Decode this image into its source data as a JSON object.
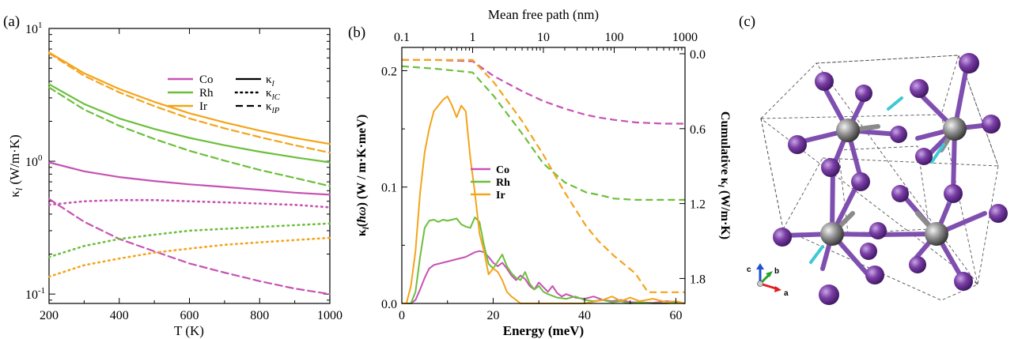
{
  "colors": {
    "Co": "#c652b4",
    "Rh": "#6cbf3b",
    "Ir": "#f4a41b",
    "axis": "#000000",
    "atom_purple": "#7b3fa6",
    "atom_grey": "#808080",
    "bond_purple": "#7f4fb0",
    "arrow_cyan": "#3ec9d4",
    "cell_line": "#555555",
    "axis_a": "#e02020",
    "axis_b": "#2aa02a",
    "axis_c": "#2050d0"
  },
  "panel_labels": {
    "a": "(a)",
    "b": "(b)",
    "c": "(c)"
  },
  "chart_data": [
    {
      "id": "a",
      "type": "line",
      "xlabel": "T (K)",
      "ylabel": "κ",
      "ylabel_sub": "l",
      "ylabel_unit": " (W/m·K)",
      "xlim": [
        200,
        1000
      ],
      "ylim": [
        0.085,
        10
      ],
      "yscale": "log",
      "xticks": [
        200,
        400,
        600,
        800,
        1000
      ],
      "yticks": [
        {
          "value": 0.1,
          "base": "10",
          "exp": "-1"
        },
        {
          "value": 1,
          "base": "10",
          "exp": "0"
        },
        {
          "value": 10,
          "base": "10",
          "exp": "1"
        }
      ],
      "legend_materials": [
        "Co",
        "Rh",
        "Ir"
      ],
      "legend_styles": [
        {
          "style": "solid",
          "label": "κ",
          "sub": "l"
        },
        {
          "style": "dotted",
          "label": "κ",
          "sub": "lC"
        },
        {
          "style": "dashed",
          "label": "κ",
          "sub": "lP"
        }
      ],
      "x": [
        200,
        300,
        400,
        500,
        600,
        700,
        800,
        900,
        1000
      ],
      "series": [
        {
          "name": "Co",
          "style": "solid",
          "values": [
            0.98,
            0.84,
            0.76,
            0.71,
            0.67,
            0.64,
            0.61,
            0.58,
            0.56
          ]
        },
        {
          "name": "Co",
          "style": "dotted",
          "values": [
            0.47,
            0.5,
            0.51,
            0.51,
            0.5,
            0.49,
            0.48,
            0.47,
            0.45
          ]
        },
        {
          "name": "Co",
          "style": "dashed",
          "values": [
            0.52,
            0.35,
            0.26,
            0.21,
            0.17,
            0.145,
            0.125,
            0.11,
            0.1
          ]
        },
        {
          "name": "Rh",
          "style": "solid",
          "values": [
            3.8,
            2.7,
            2.1,
            1.75,
            1.5,
            1.32,
            1.18,
            1.07,
            0.98
          ]
        },
        {
          "name": "Rh",
          "style": "dotted",
          "values": [
            0.19,
            0.23,
            0.26,
            0.28,
            0.3,
            0.31,
            0.32,
            0.33,
            0.34
          ]
        },
        {
          "name": "Rh",
          "style": "dashed",
          "values": [
            3.6,
            2.45,
            1.85,
            1.47,
            1.2,
            1.01,
            0.86,
            0.75,
            0.65
          ]
        },
        {
          "name": "Ir",
          "style": "solid",
          "values": [
            6.6,
            4.6,
            3.5,
            2.8,
            2.3,
            1.96,
            1.7,
            1.5,
            1.35
          ]
        },
        {
          "name": "Ir",
          "style": "dotted",
          "values": [
            0.135,
            0.165,
            0.185,
            0.205,
            0.22,
            0.235,
            0.245,
            0.255,
            0.265
          ]
        },
        {
          "name": "Ir",
          "style": "dashed",
          "values": [
            6.5,
            4.4,
            3.3,
            2.6,
            2.1,
            1.77,
            1.52,
            1.32,
            1.16
          ]
        }
      ]
    },
    {
      "id": "b",
      "type": "line",
      "xlabel": "Energy (meV)",
      "ylabel_left_prefix": "κ",
      "ylabel_left_sub": "l",
      "ylabel_left_mid": "(",
      "ylabel_left_hbar": "ħω",
      "ylabel_left_unit": ") (W / m·K·meV)",
      "ylabel_right_prefix": "Cumulative κ",
      "ylabel_right_sub": "l",
      "ylabel_right_unit": " (W/m·K)",
      "top_xlabel": "Mean free path (nm)",
      "xlim": [
        0,
        62
      ],
      "ylim": [
        0,
        0.22
      ],
      "xticks": [
        0,
        20,
        40,
        60
      ],
      "yticks": [
        "0.0",
        "0.1",
        "0.2"
      ],
      "top_xscale": "log",
      "top_xlim": [
        0.1,
        1000
      ],
      "top_xticks": [
        "0.1",
        "1",
        "10",
        "100",
        "1000"
      ],
      "right_ylim": [
        0.0,
        2.0
      ],
      "right_yticks": [
        "0.0",
        "0.6",
        "1.2",
        "1.8"
      ],
      "legend": [
        "Co",
        "Rh",
        "Ir"
      ],
      "spectral_series": [
        {
          "name": "Co",
          "x": [
            0,
            2,
            3,
            4,
            5,
            6,
            7,
            8,
            10,
            12,
            14,
            16,
            17,
            18,
            19,
            20,
            21,
            22,
            23,
            24,
            25,
            26,
            27,
            28,
            29,
            30,
            31,
            32,
            33,
            34,
            35,
            36,
            38,
            40,
            42,
            44,
            46,
            48,
            50,
            52,
            55,
            58,
            60,
            62
          ],
          "values": [
            0,
            0,
            0.003,
            0.012,
            0.022,
            0.03,
            0.033,
            0.034,
            0.036,
            0.038,
            0.04,
            0.044,
            0.045,
            0.044,
            0.04,
            0.035,
            0.032,
            0.035,
            0.03,
            0.024,
            0.02,
            0.024,
            0.021,
            0.015,
            0.012,
            0.018,
            0.014,
            0.01,
            0.015,
            0.009,
            0.006,
            0.008,
            0.005,
            0.004,
            0.006,
            0.003,
            0.002,
            0.003,
            0.001,
            0.001,
            0.0005,
            0.002,
            0.001,
            0.0
          ]
        },
        {
          "name": "Rh",
          "x": [
            0,
            2,
            3,
            4,
            5,
            6,
            7,
            8,
            9,
            10,
            11,
            12,
            13,
            14,
            15,
            16,
            17,
            18,
            19,
            20,
            21,
            22,
            23,
            24,
            25,
            26,
            27,
            28,
            29,
            30,
            31,
            32,
            34,
            36,
            38,
            40,
            42,
            44,
            46,
            48,
            50,
            52,
            55,
            58,
            60,
            62
          ],
          "values": [
            0,
            0,
            0.01,
            0.04,
            0.065,
            0.071,
            0.072,
            0.07,
            0.072,
            0.071,
            0.072,
            0.073,
            0.068,
            0.066,
            0.065,
            0.074,
            0.07,
            0.05,
            0.034,
            0.03,
            0.036,
            0.042,
            0.032,
            0.026,
            0.022,
            0.02,
            0.027,
            0.017,
            0.012,
            0.015,
            0.01,
            0.008,
            0.005,
            0.004,
            0.006,
            0.003,
            0.002,
            0.003,
            0.001,
            0.002,
            0.0,
            0.001,
            0.0,
            0.0,
            0.001,
            0.0
          ]
        },
        {
          "name": "Ir",
          "x": [
            0,
            1,
            2,
            3,
            4,
            5,
            6,
            7,
            8,
            9,
            10,
            11,
            12,
            13,
            14,
            15,
            16,
            17,
            18,
            19,
            20,
            21,
            22,
            23,
            24,
            25,
            26,
            28,
            30,
            35,
            40,
            44,
            46,
            48,
            50,
            52,
            55,
            58,
            60,
            62
          ],
          "values": [
            0,
            0,
            0.015,
            0.045,
            0.095,
            0.13,
            0.15,
            0.165,
            0.17,
            0.175,
            0.178,
            0.17,
            0.16,
            0.17,
            0.165,
            0.125,
            0.095,
            0.06,
            0.045,
            0.025,
            0.03,
            0.027,
            0.02,
            0.01,
            0.006,
            0.003,
            0.0,
            0.0,
            0.0,
            0.0,
            0.0,
            0.003,
            0.006,
            0.002,
            0.005,
            0.002,
            0.004,
            0.001,
            0.002,
            0.0
          ]
        }
      ],
      "cumulative_series": [
        {
          "name": "Co",
          "mfp_nm": [
            0.1,
            0.3,
            1,
            2,
            5,
            10,
            20,
            40,
            60,
            100,
            200,
            500,
            1000
          ],
          "values": [
            0.05,
            0.05,
            0.06,
            0.18,
            0.3,
            0.38,
            0.44,
            0.49,
            0.51,
            0.53,
            0.55,
            0.56,
            0.56
          ]
        },
        {
          "name": "Rh",
          "mfp_nm": [
            0.1,
            0.3,
            1,
            2,
            5,
            10,
            20,
            40,
            60,
            100,
            200,
            500,
            1000
          ],
          "values": [
            0.1,
            0.12,
            0.15,
            0.34,
            0.64,
            0.88,
            1.03,
            1.11,
            1.13,
            1.16,
            1.17,
            1.17,
            1.17
          ]
        },
        {
          "name": "Ir",
          "mfp_nm": [
            0.1,
            0.3,
            1,
            2,
            5,
            10,
            20,
            40,
            60,
            100,
            200,
            300,
            500,
            1000
          ],
          "values": [
            0.05,
            0.05,
            0.05,
            0.23,
            0.54,
            0.81,
            1.11,
            1.38,
            1.5,
            1.62,
            1.76,
            1.91,
            1.91,
            1.91
          ]
        }
      ]
    }
  ],
  "crystal_axes": {
    "a": "a",
    "b": "b",
    "c": "c"
  }
}
